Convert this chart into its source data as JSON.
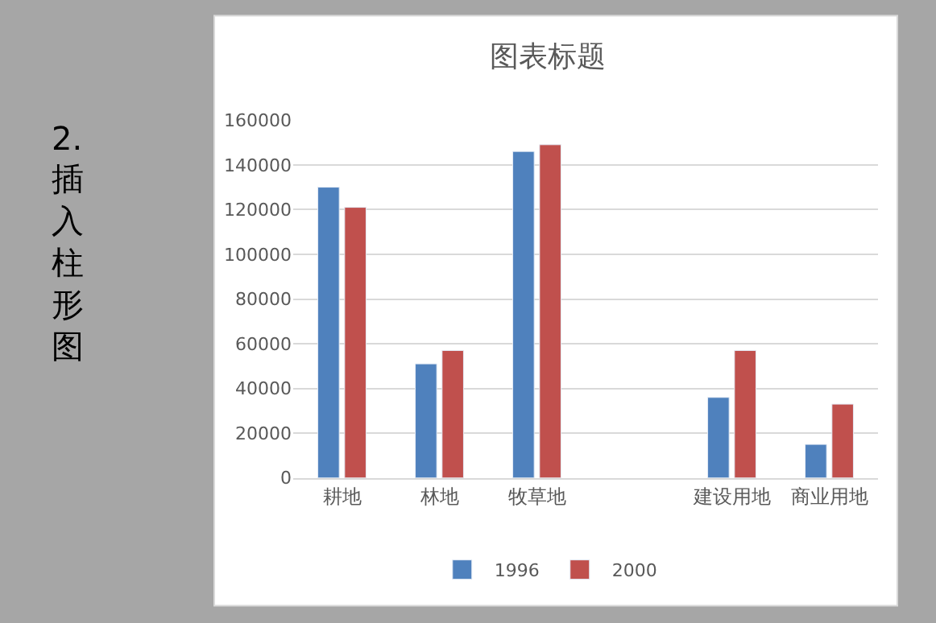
{
  "chart_data": {
    "type": "bar",
    "title": "图表标题",
    "categories": [
      "耕地",
      "林地",
      "牧草地",
      null,
      "建设用地",
      "商业用地"
    ],
    "series": [
      {
        "name": "1996",
        "color": "#4f81bd",
        "values": [
          130000,
          51000,
          146000,
          null,
          36000,
          15000
        ]
      },
      {
        "name": "2000",
        "color": "#c0504d",
        "values": [
          121000,
          57000,
          149000,
          null,
          57000,
          33000
        ]
      }
    ],
    "ylim": [
      0,
      160000
    ],
    "yticks": [
      0,
      20000,
      40000,
      60000,
      80000,
      100000,
      120000,
      140000,
      160000
    ],
    "grid": "y",
    "legend": "bottom",
    "annotations": [
      "2.",
      "插入柱形图"
    ]
  }
}
